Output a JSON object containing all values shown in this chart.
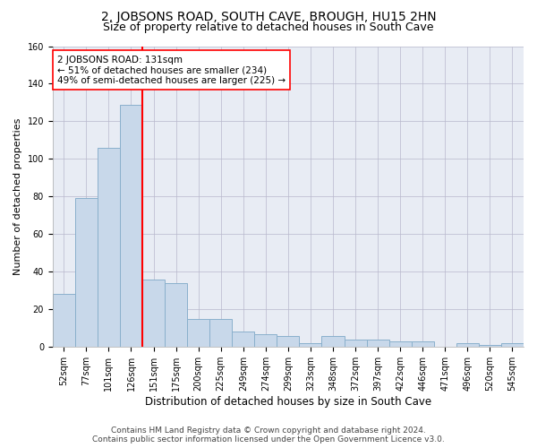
{
  "title": "2, JOBSONS ROAD, SOUTH CAVE, BROUGH, HU15 2HN",
  "subtitle": "Size of property relative to detached houses in South Cave",
  "xlabel": "Distribution of detached houses by size in South Cave",
  "ylabel": "Number of detached properties",
  "footer_line1": "Contains HM Land Registry data © Crown copyright and database right 2024.",
  "footer_line2": "Contains public sector information licensed under the Open Government Licence v3.0.",
  "categories": [
    "52sqm",
    "77sqm",
    "101sqm",
    "126sqm",
    "151sqm",
    "175sqm",
    "200sqm",
    "225sqm",
    "249sqm",
    "274sqm",
    "299sqm",
    "323sqm",
    "348sqm",
    "372sqm",
    "397sqm",
    "422sqm",
    "446sqm",
    "471sqm",
    "496sqm",
    "520sqm",
    "545sqm"
  ],
  "values": [
    28,
    79,
    106,
    129,
    36,
    34,
    15,
    15,
    8,
    7,
    6,
    2,
    6,
    4,
    4,
    3,
    3,
    0,
    2,
    1,
    2
  ],
  "bar_color": "#c8d8ea",
  "bar_edge_color": "#8ab0cc",
  "bar_linewidth": 0.7,
  "vline_x": 3.5,
  "vline_color": "red",
  "vline_linewidth": 1.5,
  "annotation_line1": "2 JOBSONS ROAD: 131sqm",
  "annotation_line2": "← 51% of detached houses are smaller (234)",
  "annotation_line3": "49% of semi-detached houses are larger (225) →",
  "annotation_box_color": "white",
  "annotation_box_edge_color": "red",
  "ylim": [
    0,
    160
  ],
  "yticks": [
    0,
    20,
    40,
    60,
    80,
    100,
    120,
    140,
    160
  ],
  "grid_color": "#b8b8cc",
  "plot_bg_color": "#e8ecf4",
  "title_fontsize": 10,
  "subtitle_fontsize": 9,
  "xlabel_fontsize": 8.5,
  "ylabel_fontsize": 8,
  "tick_fontsize": 7,
  "footer_fontsize": 6.5,
  "annotation_fontsize": 7.5
}
